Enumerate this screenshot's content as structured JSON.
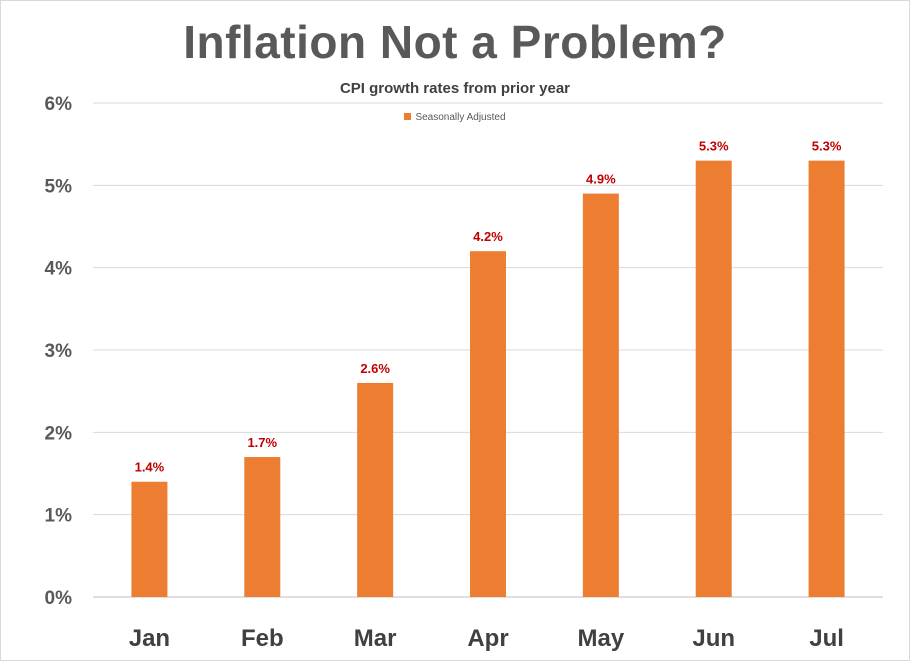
{
  "chart_data": {
    "type": "bar",
    "title": "Inflation Not a Problem?",
    "subtitle": "CPI growth rates from prior year",
    "categories": [
      "Jan",
      "Feb",
      "Mar",
      "Apr",
      "May",
      "Jun",
      "Jul"
    ],
    "series": [
      {
        "name": "Seasonally Adjusted",
        "color": "#ed7d31",
        "values": [
          1.4,
          1.7,
          2.6,
          4.2,
          4.9,
          5.3,
          5.3
        ],
        "data_labels": [
          "1.4%",
          "1.7%",
          "2.6%",
          "4.2%",
          "4.9%",
          "5.3%",
          "5.3%"
        ]
      }
    ],
    "yticks": [
      0,
      1,
      2,
      3,
      4,
      5,
      6
    ],
    "ytick_labels": [
      "0%",
      "1%",
      "2%",
      "3%",
      "4%",
      "5%",
      "6%"
    ],
    "ylim": [
      0,
      6
    ],
    "xlabel": "",
    "ylabel": "",
    "grid": true,
    "legend_position": "top-center",
    "data_label_color": "#c00000"
  }
}
